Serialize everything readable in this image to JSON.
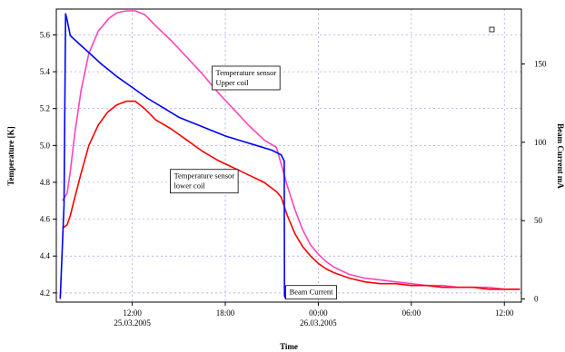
{
  "chart_data": {
    "type": "line",
    "title": "",
    "xlabel": "Time",
    "ylabel": "Temperature [K]",
    "ylabel_right": "Beam Current mA",
    "x_unit": "hours from 25.03.2005 06:00",
    "xlim": [
      1.1,
      31.1
    ],
    "ylim_left": [
      4.15,
      5.74
    ],
    "ylim_right": [
      -2,
      185
    ],
    "x_ticks": [
      {
        "x": 6,
        "label": "12:00",
        "date": "25.03.2005"
      },
      {
        "x": 12,
        "label": "18:00",
        "date": ""
      },
      {
        "x": 18,
        "label": "00:00",
        "date": "26.03.2005"
      },
      {
        "x": 24,
        "label": "06:00",
        "date": ""
      },
      {
        "x": 30,
        "label": "12:00",
        "date": ""
      }
    ],
    "y_ticks_left": [
      "4.2",
      "4.4",
      "4.6",
      "4.8",
      "5.0",
      "5.2",
      "5.4",
      "5.6"
    ],
    "y_tick_values_left": [
      4.2,
      4.4,
      4.6,
      4.8,
      5.0,
      5.2,
      5.4,
      5.6
    ],
    "y_ticks_right": [
      "0",
      "50",
      "100",
      "150"
    ],
    "y_tick_values_right": [
      0,
      50,
      100,
      150
    ],
    "grid": true,
    "series": [
      {
        "name": "Temperature sensor Upper coil",
        "axis": "left",
        "color": "#ff44bb",
        "x": [
          1.5,
          1.8,
          2.0,
          2.3,
          2.7,
          3.2,
          3.8,
          4.5,
          5.0,
          5.6,
          6.2,
          6.8,
          7.5,
          8.5,
          9.5,
          10.5,
          11.5,
          12.5,
          13.5,
          14.5,
          15.3,
          15.6,
          16.0,
          16.5,
          17.0,
          17.5,
          18.0,
          18.5,
          19.0,
          20.0,
          21.0,
          22.0,
          23.0,
          24.0,
          25.0,
          26.0,
          27.0,
          28.0,
          29.0,
          30.0,
          31.0
        ],
        "y": [
          4.7,
          4.74,
          4.86,
          5.07,
          5.3,
          5.5,
          5.62,
          5.69,
          5.72,
          5.73,
          5.73,
          5.71,
          5.65,
          5.57,
          5.48,
          5.39,
          5.29,
          5.2,
          5.11,
          5.03,
          4.99,
          4.9,
          4.78,
          4.65,
          4.54,
          4.46,
          4.41,
          4.37,
          4.34,
          4.3,
          4.28,
          4.27,
          4.26,
          4.25,
          4.24,
          4.24,
          4.23,
          4.23,
          4.23,
          4.22,
          4.22
        ]
      },
      {
        "name": "Temperature sensor lower coil",
        "axis": "left",
        "color": "#ff0000",
        "x": [
          1.5,
          1.8,
          2.0,
          2.3,
          2.7,
          3.2,
          3.8,
          4.4,
          5.0,
          5.6,
          6.2,
          6.8,
          7.5,
          8.5,
          9.5,
          10.5,
          11.5,
          12.5,
          13.5,
          14.5,
          15.3,
          15.6,
          16.0,
          16.5,
          17.0,
          17.5,
          18.0,
          18.5,
          19.0,
          20.0,
          21.0,
          22.0,
          23.0,
          24.0,
          25.0,
          26.0,
          27.0,
          28.0,
          29.0,
          30.0,
          31.0
        ],
        "y": [
          4.55,
          4.57,
          4.62,
          4.72,
          4.85,
          5.0,
          5.11,
          5.18,
          5.22,
          5.24,
          5.24,
          5.2,
          5.14,
          5.09,
          5.03,
          4.97,
          4.92,
          4.88,
          4.84,
          4.8,
          4.75,
          4.72,
          4.62,
          4.52,
          4.45,
          4.4,
          4.36,
          4.33,
          4.31,
          4.28,
          4.26,
          4.25,
          4.25,
          4.24,
          4.24,
          4.23,
          4.23,
          4.23,
          4.22,
          4.22,
          4.22
        ]
      },
      {
        "name": "Beam Current",
        "axis": "right",
        "color": "#0000ff",
        "x": [
          1.35,
          1.6,
          1.7,
          1.8,
          2.0,
          3.0,
          4.0,
          5.0,
          6.0,
          7.0,
          8.0,
          9.0,
          10.0,
          11.0,
          12.0,
          13.0,
          14.0,
          15.0,
          15.6,
          15.8,
          15.82,
          15.9
        ],
        "y": [
          0,
          60,
          182,
          178,
          168,
          159,
          150,
          142,
          135,
          128,
          122,
          116,
          112,
          108,
          104,
          101,
          98,
          95,
          92,
          88,
          2,
          0
        ]
      }
    ],
    "annotations": [
      {
        "lines": [
          "Temperature sensor",
          "Upper coil"
        ],
        "x": 11.15,
        "y": 5.43
      },
      {
        "lines": [
          "Temperature sensor",
          "lower coil"
        ],
        "x": 8.45,
        "y": 4.87
      },
      {
        "lines": [
          "Beam Current"
        ],
        "x": 15.9,
        "y": 4.24
      }
    ],
    "legend": "none"
  }
}
